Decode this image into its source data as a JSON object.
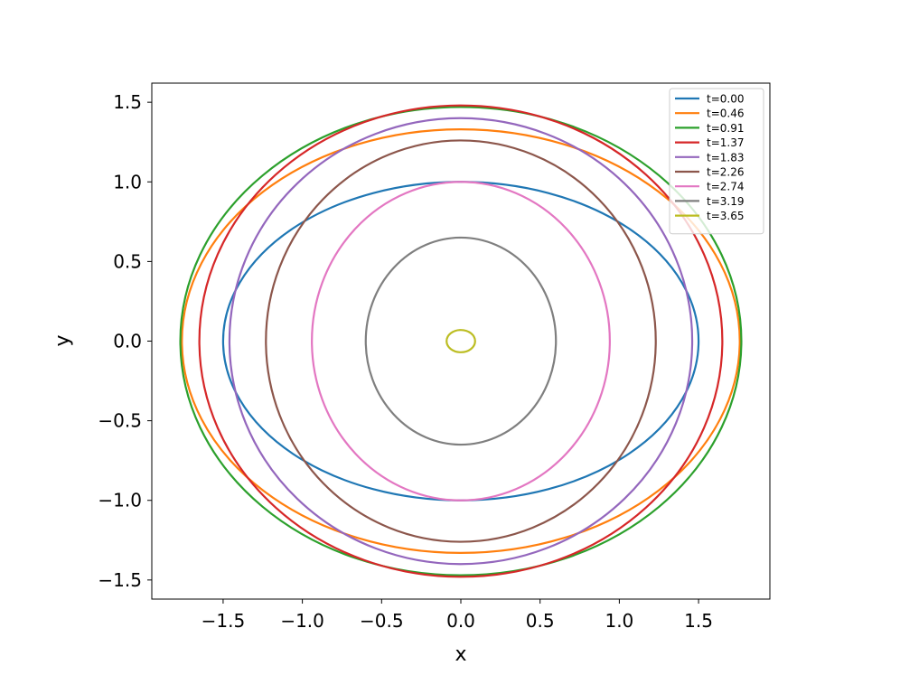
{
  "chart_data": {
    "type": "line",
    "title": "",
    "xlabel": "x",
    "ylabel": "y",
    "xlim": [
      -1.95,
      1.95
    ],
    "ylim": [
      -1.62,
      1.62
    ],
    "xticks": [
      -1.5,
      -1.0,
      -0.5,
      0.0,
      0.5,
      1.0,
      1.5
    ],
    "yticks": [
      -1.5,
      -1.0,
      -0.5,
      0.0,
      0.5,
      1.0,
      1.5
    ],
    "xtick_labels": [
      "−1.5",
      "−1.0",
      "−0.5",
      "0.0",
      "0.5",
      "1.0",
      "1.5"
    ],
    "ytick_labels": [
      "−1.5",
      "−1.0",
      "−0.5",
      "0.0",
      "0.5",
      "1.0",
      "1.5"
    ],
    "grid": false,
    "legend_position": "top-right",
    "series": [
      {
        "name": "t=0.00",
        "color": "#1f77b4",
        "center": [
          0,
          0
        ],
        "x_semi_axis": 1.5,
        "y_semi_axis": 1.0
      },
      {
        "name": "t=0.46",
        "color": "#ff7f0e",
        "center": [
          0,
          0
        ],
        "x_semi_axis": 1.76,
        "y_semi_axis": 1.33
      },
      {
        "name": "t=0.91",
        "color": "#2ca02c",
        "center": [
          0,
          0
        ],
        "x_semi_axis": 1.77,
        "y_semi_axis": 1.47
      },
      {
        "name": "t=1.37",
        "color": "#d62728",
        "center": [
          0,
          0
        ],
        "x_semi_axis": 1.65,
        "y_semi_axis": 1.48
      },
      {
        "name": "t=1.83",
        "color": "#9467bd",
        "center": [
          0,
          0
        ],
        "x_semi_axis": 1.46,
        "y_semi_axis": 1.4
      },
      {
        "name": "t=2.26",
        "color": "#8c564b",
        "center": [
          0,
          0
        ],
        "x_semi_axis": 1.23,
        "y_semi_axis": 1.26
      },
      {
        "name": "t=2.74",
        "color": "#e377c2",
        "center": [
          0,
          0
        ],
        "x_semi_axis": 0.94,
        "y_semi_axis": 1.0
      },
      {
        "name": "t=3.19",
        "color": "#7f7f7f",
        "center": [
          0,
          0
        ],
        "x_semi_axis": 0.6,
        "y_semi_axis": 0.65
      },
      {
        "name": "t=3.65",
        "color": "#bcbd22",
        "center": [
          0,
          0
        ],
        "x_semi_axis": 0.09,
        "y_semi_axis": 0.07
      }
    ]
  }
}
